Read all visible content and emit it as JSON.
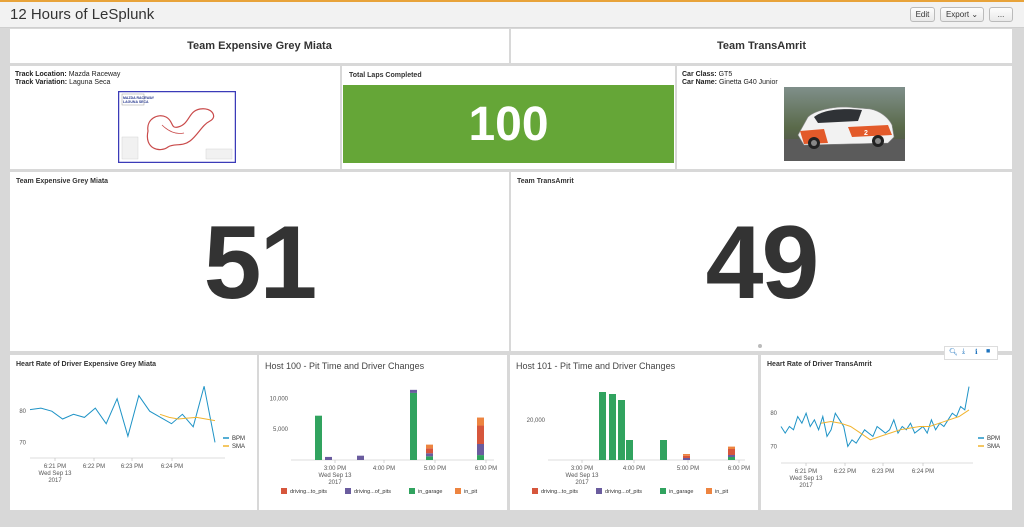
{
  "page": {
    "title": "12 Hours of LeSplunk"
  },
  "toolbar": {
    "edit": "Edit",
    "export": "Export",
    "more": "..."
  },
  "row1": {
    "team1": "Team Expensive Grey Miata",
    "team2": "Team TransAmrit"
  },
  "track": {
    "location_label": "Track Location:",
    "location": "Mazda Raceway",
    "variation_label": "Track Variation:",
    "variation": "Laguna Seca",
    "map_logo_line1": "MAZDA RACEWAY",
    "map_logo_line2": "LAGUNA SECA"
  },
  "laps": {
    "title": "Total Laps Completed",
    "value": "100"
  },
  "car": {
    "class_label": "Car Class:",
    "class": "GT5",
    "name_label": "Car Name:",
    "name": "Ginetta G40 Junior"
  },
  "scores": [
    {
      "title": "Team Expensive Grey Miata",
      "value": "51"
    },
    {
      "title": "Team TransAmrit",
      "value": "49"
    }
  ],
  "colors": {
    "green": "#65a637",
    "bpm": "#1e93c6",
    "sma": "#f1b42f",
    "driving_to_pits": "#d6563c",
    "driving_of_pits": "#6a5c9e",
    "in_garage": "#31a35f",
    "in_pit": "#ed8440"
  },
  "legend_pits": [
    "driving...to_pits",
    "driving...of_pits",
    "in_garage",
    "in_pit"
  ],
  "charts": {
    "hr1": {
      "title": "Heart Rate of Driver Expensive Grey Miata",
      "yticks": [
        "80",
        "70"
      ],
      "xticks": [
        "6:21 PM\nWed Sep 13\n2017",
        "6:22 PM",
        "6:23 PM",
        "6:24 PM"
      ],
      "legend": [
        "BPM",
        "SMA"
      ]
    },
    "pit100": {
      "title": "Host 100 - Pit Time and Driver Changes",
      "yticks": [
        "10,000",
        "5,000"
      ],
      "xticks": [
        "3:00 PM\nWed Sep 13\n2017",
        "4:00 PM",
        "5:00 PM",
        "6:00 PM"
      ]
    },
    "pit101": {
      "title": "Host 101 - Pit Time and Driver Changes",
      "yticks": [
        "20,000"
      ],
      "xticks": [
        "3:00 PM\nWed Sep 13\n2017",
        "4:00 PM",
        "5:00 PM",
        "6:00 PM"
      ]
    },
    "hr2": {
      "title": "Heart Rate of Driver TransAmrit",
      "yticks": [
        "80",
        "70"
      ],
      "xticks": [
        "6:21 PM\nWed Sep 13\n2017",
        "6:22 PM",
        "6:23 PM",
        "6:24 PM"
      ],
      "legend": [
        "BPM",
        "SMA"
      ]
    }
  },
  "chart_data": [
    {
      "type": "line",
      "title": "Heart Rate of Driver Expensive Grey Miata",
      "ylim": [
        65,
        90
      ],
      "series": [
        {
          "name": "BPM",
          "values": [
            80.5,
            81,
            80,
            77.5,
            79,
            78,
            81,
            76,
            84,
            72,
            85,
            80,
            78,
            76,
            79,
            75,
            88,
            70
          ]
        },
        {
          "name": "SMA",
          "values": [
            79,
            78,
            77.5,
            77.8,
            78,
            77.5,
            77
          ]
        }
      ]
    },
    {
      "type": "bar",
      "title": "Host 100 - Pit Time and Driver Changes",
      "ylim": [
        0,
        13000
      ],
      "series": [
        {
          "name": "driving...to_pits",
          "values": [
            0,
            0,
            0,
            0,
            0,
            800,
            0,
            3000
          ]
        },
        {
          "name": "driving...of_pits",
          "values": [
            0,
            500,
            700,
            0,
            500,
            500,
            0,
            1800
          ]
        },
        {
          "name": "in_garage",
          "values": [
            7200,
            0,
            0,
            0,
            10900,
            600,
            0,
            800
          ]
        },
        {
          "name": "in_pit",
          "values": [
            0,
            0,
            0,
            0,
            0,
            600,
            0,
            1300
          ]
        }
      ]
    },
    {
      "type": "bar",
      "title": "Host 101 - Pit Time and Driver Changes",
      "ylim": [
        0,
        40000
      ],
      "series": [
        {
          "name": "driving...to_pits",
          "values": [
            0,
            0,
            0,
            0,
            0,
            0,
            0,
            0,
            1100,
            0,
            3000
          ]
        },
        {
          "name": "driving...of_pits",
          "values": [
            0,
            0,
            0,
            0,
            0,
            0,
            0,
            0,
            1000,
            0,
            1000
          ]
        },
        {
          "name": "in_garage",
          "values": [
            0,
            34000,
            33000,
            30000,
            10000,
            0,
            10000,
            0,
            0,
            0,
            1500
          ]
        },
        {
          "name": "in_pit",
          "values": [
            0,
            0,
            0,
            0,
            0,
            0,
            0,
            0,
            900,
            0,
            1200
          ]
        }
      ]
    },
    {
      "type": "line",
      "title": "Heart Rate of Driver TransAmrit",
      "ylim": [
        65,
        90
      ],
      "series": [
        {
          "name": "BPM",
          "values": [
            76,
            74,
            76,
            75,
            79,
            77,
            80,
            76,
            78,
            75,
            79,
            73,
            75,
            80,
            78,
            76,
            70,
            72,
            71,
            73,
            75,
            74,
            73,
            76,
            75,
            74,
            75,
            78,
            74,
            76,
            75,
            77,
            74,
            75,
            76,
            74,
            78,
            75,
            77,
            76,
            78,
            80,
            79,
            82,
            81,
            88
          ]
        },
        {
          "name": "SMA",
          "values": [
            77,
            77.5,
            77,
            76,
            74,
            72,
            73,
            74,
            75,
            75.5,
            76,
            76,
            77,
            78,
            79,
            81
          ]
        }
      ]
    }
  ]
}
